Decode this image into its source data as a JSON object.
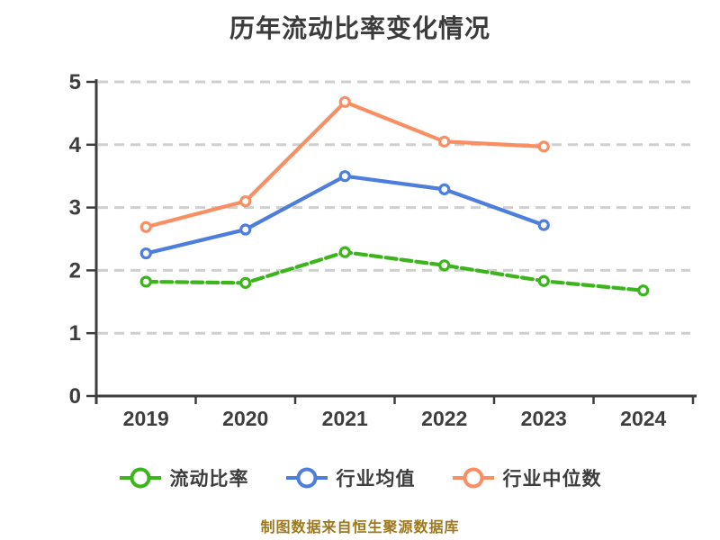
{
  "header": {
    "title": "历年流动比率变化情况"
  },
  "footer": {
    "text": "制图数据来自恒生聚源数据库"
  },
  "chart_data": {
    "type": "line",
    "title": "历年流动比率变化情况",
    "categories": [
      "2019",
      "2020",
      "2021",
      "2022",
      "2023",
      "2024"
    ],
    "series": [
      {
        "key": "current-ratio",
        "name": "流动比率",
        "color": "#3cb51d",
        "line_style": "dashed",
        "values": [
          1.82,
          1.8,
          2.29,
          2.08,
          1.83,
          1.68
        ]
      },
      {
        "key": "industry-average",
        "name": "行业均值",
        "color": "#4d7ede",
        "line_style": "solid",
        "values": [
          2.27,
          2.65,
          3.5,
          3.29,
          2.72,
          null
        ]
      },
      {
        "key": "industry-median",
        "name": "行业中位数",
        "color": "#f98e63",
        "line_style": "solid",
        "values": [
          2.69,
          3.1,
          4.68,
          4.05,
          3.97,
          null
        ]
      }
    ],
    "xlabel": "",
    "ylabel": "",
    "ylim": [
      0,
      5
    ],
    "yticks": [
      0,
      1,
      2,
      3,
      4,
      5
    ],
    "grid": "horizontal-dashed",
    "legend_position": "bottom",
    "marker": "circle-white-fill",
    "colors": {
      "axis": "#3d3d3d",
      "grid": "#cfcfcf",
      "tick_label": "#3d3d3d",
      "title": "#3b3b3b",
      "footer": "#9d781c"
    }
  }
}
